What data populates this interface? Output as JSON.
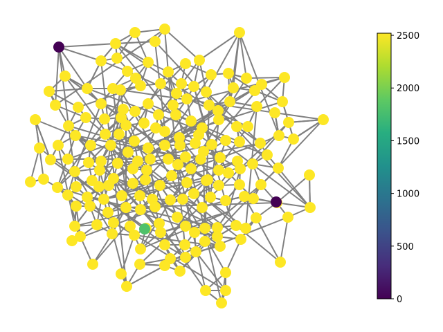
{
  "colorbar": {
    "colormap": "viridis",
    "range": [
      0,
      2520
    ],
    "ticks": [
      0,
      500,
      1000,
      1500,
      2000,
      2500
    ],
    "tick_labels": [
      "0",
      "500",
      "1000",
      "1500",
      "2000",
      "2500"
    ]
  },
  "style": {
    "edge_color": "#808080",
    "default_node_value": 2520
  },
  "highlighted_nodes": [
    {
      "id": "n-top-left",
      "value": 0
    },
    {
      "id": "n-right",
      "value": 0
    },
    {
      "id": "n-lower",
      "value": 1800
    }
  ]
}
